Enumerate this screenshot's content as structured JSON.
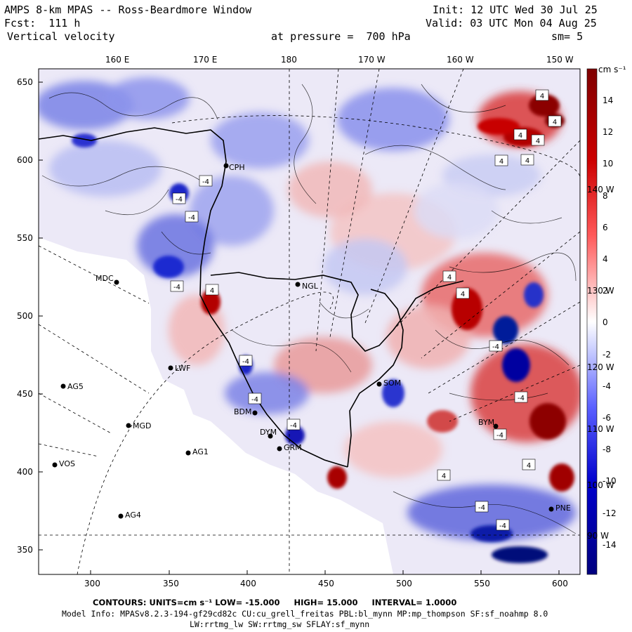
{
  "header": {
    "title": "AMPS 8-km MPAS -- Ross-Beardmore Window",
    "fcst_label": "Fcst:",
    "fcst_value": "111 h",
    "field_name": "Vertical velocity",
    "init": "Init: 12 UTC Wed 30 Jul 25",
    "valid": "Valid: 03 UTC Mon 04 Aug 25",
    "pressure_label": "at pressure =",
    "pressure_value": "700 hPa",
    "smoothing": "sm= 5"
  },
  "colorbar": {
    "units": "cm s⁻¹",
    "labels": [
      "14",
      "12",
      "10",
      "8",
      "6",
      "4",
      "2",
      "0",
      "-2",
      "-4",
      "-6",
      "-8",
      "-10",
      "-12",
      "-14"
    ],
    "range": [
      -15,
      15
    ],
    "neg_color": "#00007f",
    "zero_color": "#ffffff",
    "pos_color": "#7f0000"
  },
  "axes": {
    "top_lon_labels": [
      "160 E",
      "170 E",
      "180",
      "170 W",
      "160 W",
      "150 W"
    ],
    "left_labels": [
      "650",
      "600",
      "550",
      "500",
      "450",
      "400",
      "350"
    ],
    "bottom_labels": [
      "300",
      "350",
      "400",
      "450",
      "500",
      "550",
      "600"
    ],
    "right_lon_labels": [
      "140 W",
      "130 W",
      "120 W",
      "110 W",
      "100 W",
      "90 W"
    ]
  },
  "stations": [
    {
      "id": "CPH"
    },
    {
      "id": "NGL"
    },
    {
      "id": "MDC"
    },
    {
      "id": "LWF"
    },
    {
      "id": "AG5"
    },
    {
      "id": "SOM"
    },
    {
      "id": "BDM"
    },
    {
      "id": "MGD"
    },
    {
      "id": "BYM"
    },
    {
      "id": "DYM"
    },
    {
      "id": "GRM"
    },
    {
      "id": "AG1"
    },
    {
      "id": "VOS"
    },
    {
      "id": "AG4"
    },
    {
      "id": "PNE"
    }
  ],
  "contour_label_value": "-4",
  "contour_label_pos": "4",
  "footer": {
    "contours_line": "CONTOURS: UNITS=cm s⁻¹ LOW= -15.000     HIGH= 15.000     INTERVAL= 1.0000",
    "model_info": "Model Info: MPASv8.2.3-194-gf29cd82c CU:cu_grell_freitas PBL:bl_mynn MP:mp_thompson SF:sf_noahmp 8.0",
    "physics": "LW:rrtmg_lw SW:rrtmg_sw SFLAY:sf_mynn"
  }
}
